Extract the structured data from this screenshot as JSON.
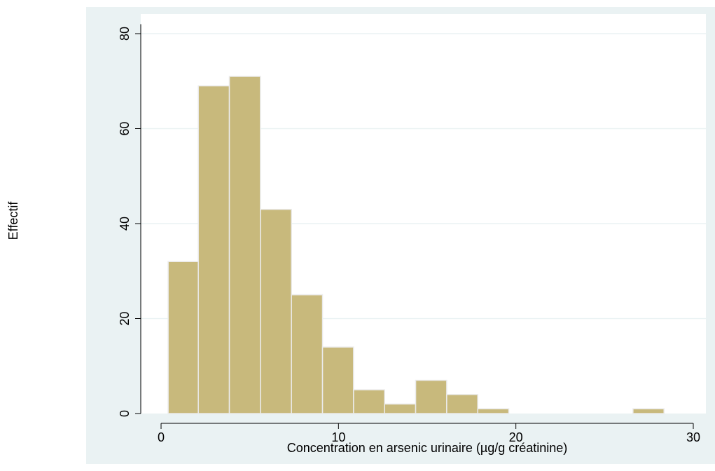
{
  "chart_data": {
    "type": "bar",
    "title": "",
    "xlabel": "Concentration en arsenic urinaire (µg/g créatinine)",
    "ylabel": "Effectif",
    "xlim": [
      -1,
      31
    ],
    "ylim": [
      0,
      82
    ],
    "grid": true,
    "bins": [
      {
        "x0": 0.4,
        "x1": 2.1,
        "value": 32
      },
      {
        "x0": 2.1,
        "x1": 3.85,
        "value": 69
      },
      {
        "x0": 3.85,
        "x1": 5.6,
        "value": 71
      },
      {
        "x0": 5.6,
        "x1": 7.35,
        "value": 43
      },
      {
        "x0": 7.35,
        "x1": 9.1,
        "value": 25
      },
      {
        "x0": 9.1,
        "x1": 10.85,
        "value": 14
      },
      {
        "x0": 10.85,
        "x1": 12.6,
        "value": 5
      },
      {
        "x0": 12.6,
        "x1": 14.35,
        "value": 2
      },
      {
        "x0": 14.35,
        "x1": 16.1,
        "value": 7
      },
      {
        "x0": 16.1,
        "x1": 17.85,
        "value": 4
      },
      {
        "x0": 17.85,
        "x1": 19.6,
        "value": 1
      },
      {
        "x0": 26.6,
        "x1": 28.35,
        "value": 1
      }
    ],
    "x_ticks": [
      0,
      10,
      20,
      30
    ],
    "x_tick_labels": [
      "0",
      "10",
      "20",
      "30"
    ],
    "y_ticks": [
      0,
      20,
      40,
      60,
      80
    ],
    "y_tick_labels": [
      "0",
      "20",
      "40",
      "60",
      "80"
    ]
  },
  "colors": {
    "background": "#ffffff",
    "panel": "#eaf2f3",
    "plot_area": "#ffffff",
    "bar_fill": "#c8b97c",
    "bar_stroke": "#ebebeb",
    "grid": "#eaf2f3",
    "axis": "#000000"
  }
}
